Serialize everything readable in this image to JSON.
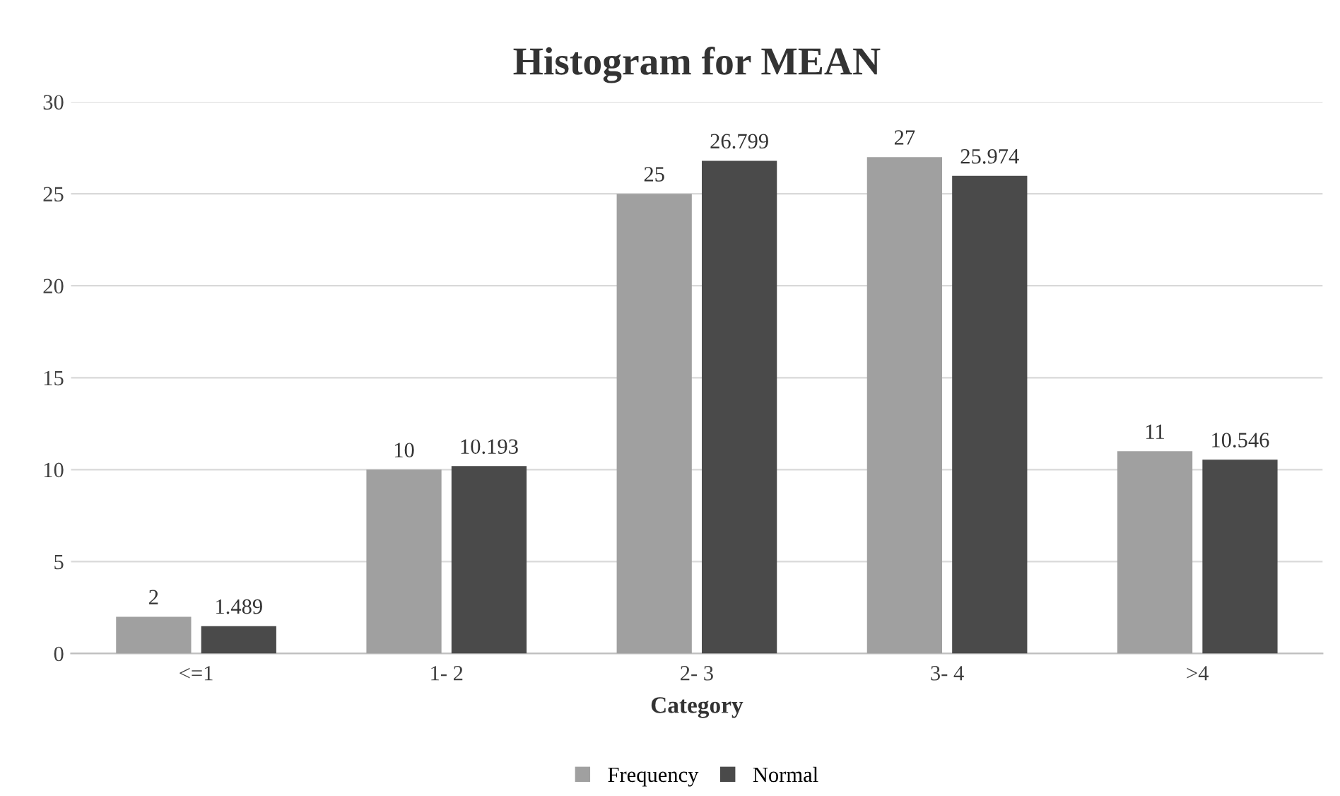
{
  "chart_data": {
    "type": "bar",
    "title": "Histogram for MEAN",
    "xlabel": "Category",
    "categories": [
      "<=1",
      "1- 2",
      "2- 3",
      "3- 4",
      ">4"
    ],
    "series": [
      {
        "name": "Frequency",
        "color": "#a0a0a0",
        "values": [
          2,
          10,
          25,
          27,
          11
        ]
      },
      {
        "name": "Normal",
        "color": "#4a4a4a",
        "values": [
          1.489,
          10.193,
          26.799,
          25.974,
          10.546
        ]
      }
    ],
    "ylim": [
      0,
      30
    ],
    "yticks": [
      0,
      5,
      10,
      15,
      20,
      25,
      30
    ],
    "grid": "y",
    "legend": "bottom",
    "data_labels": true
  }
}
